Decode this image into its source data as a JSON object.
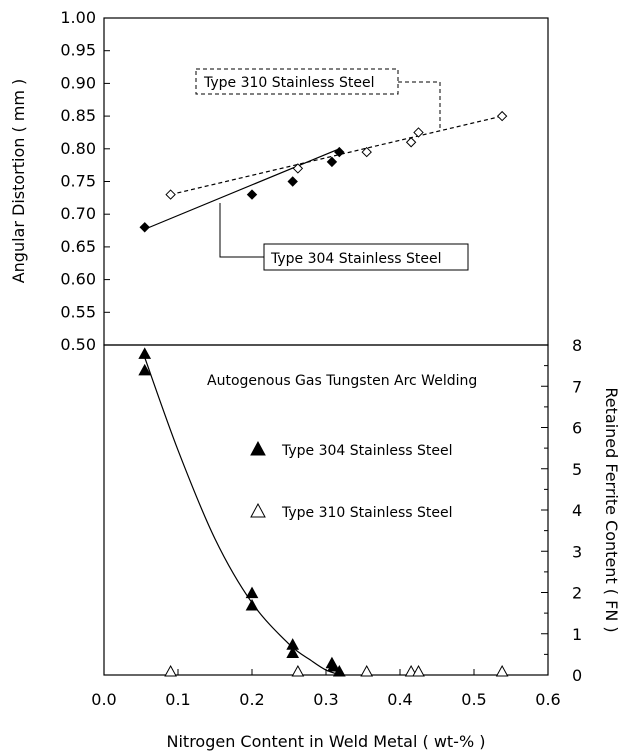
{
  "chart_data": [
    {
      "type": "scatter",
      "panel": "top",
      "ylabel": "Angular Distortion ( mm )",
      "ylim": [
        0.5,
        1.0
      ],
      "yticks": [
        "0.50",
        "0.55",
        "0.60",
        "0.65",
        "0.70",
        "0.75",
        "0.80",
        "0.85",
        "0.90",
        "0.95",
        "1.00"
      ],
      "series": [
        {
          "name": "Type 304 Stainless Steel",
          "marker": "filled-diamond",
          "fit": "solid linear",
          "x": [
            0.055,
            0.2,
            0.255,
            0.308,
            0.318
          ],
          "y": [
            0.68,
            0.73,
            0.75,
            0.78,
            0.795
          ],
          "fit_line": [
            [
              0.055,
              0.677
            ],
            [
              0.318,
              0.8
            ]
          ]
        },
        {
          "name": "Type 310 Stainless Steel",
          "marker": "open-diamond",
          "fit": "dashed linear",
          "x": [
            0.09,
            0.262,
            0.355,
            0.415,
            0.425,
            0.538
          ],
          "y": [
            0.73,
            0.77,
            0.795,
            0.81,
            0.825,
            0.85
          ],
          "fit_line": [
            [
              0.09,
              0.73
            ],
            [
              0.538,
              0.85
            ]
          ]
        }
      ],
      "annotations": [
        {
          "text": "Type 310 Stainless Steel",
          "box": "dashed"
        },
        {
          "text": "Type 304 Stainless Steel",
          "box": "solid"
        }
      ]
    },
    {
      "type": "scatter",
      "panel": "bottom",
      "ylabel": "Retained Ferrite Content ( FN )",
      "ylim": [
        0,
        8
      ],
      "yticks": [
        "0",
        "1",
        "2",
        "3",
        "4",
        "5",
        "6",
        "7",
        "8"
      ],
      "title_in_panel": "Autogenous Gas Tungsten Arc Welding",
      "series": [
        {
          "name": "Type 304 Stainless Steel",
          "marker": "filled-triangle",
          "fit": "solid curve",
          "x": [
            0.055,
            0.055,
            0.2,
            0.2,
            0.255,
            0.255,
            0.308,
            0.31,
            0.318
          ],
          "y": [
            7.7,
            7.3,
            1.9,
            1.6,
            0.65,
            0.45,
            0.2,
            0.12,
            0.0
          ]
        },
        {
          "name": "Type 310 Stainless Steel",
          "marker": "open-triangle",
          "x": [
            0.09,
            0.262,
            0.355,
            0.415,
            0.425,
            0.538
          ],
          "y": [
            0,
            0,
            0,
            0,
            0,
            0
          ]
        }
      ],
      "curve": [
        [
          0.055,
          7.7
        ],
        [
          0.1,
          5.45
        ],
        [
          0.15,
          3.3
        ],
        [
          0.2,
          1.75
        ],
        [
          0.25,
          0.75
        ],
        [
          0.28,
          0.35
        ],
        [
          0.3,
          0.12
        ],
        [
          0.32,
          0.0
        ]
      ]
    }
  ],
  "xaxis": {
    "label": "Nitrogen Content in Weld Metal ( wt-% )",
    "xlim": [
      0.0,
      0.6
    ],
    "ticks": [
      "0.0",
      "0.1",
      "0.2",
      "0.3",
      "0.4",
      "0.5",
      "0.6"
    ]
  },
  "legend": {
    "entries": [
      {
        "label": "Type 304 Stainless Steel",
        "marker": "filled-triangle"
      },
      {
        "label": "Type 310 Stainless Steel",
        "marker": "open-triangle"
      }
    ]
  }
}
